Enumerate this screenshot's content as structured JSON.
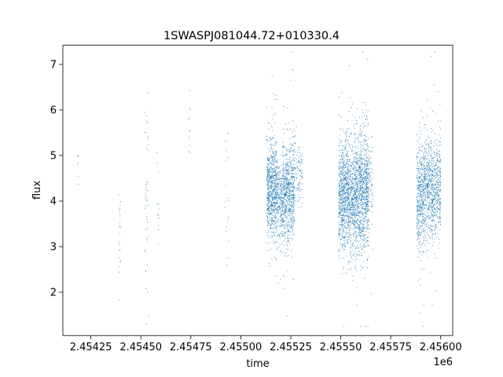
{
  "chart_data": {
    "type": "scatter",
    "title": "1SWASPJ081044.72+010330.4",
    "xlabel": "time",
    "ylabel": "flux",
    "x_offset_label": "1e6",
    "xlim": [
      2.45411,
      2.45606
    ],
    "ylim": [
      1.05,
      7.42
    ],
    "x_ticks": [
      {
        "value": 2.45425,
        "label": "2.45425"
      },
      {
        "value": 2.4545,
        "label": "2.45450"
      },
      {
        "value": 2.45475,
        "label": "2.45475"
      },
      {
        "value": 2.455,
        "label": "2.45500"
      },
      {
        "value": 2.45525,
        "label": "2.45525"
      },
      {
        "value": 2.4555,
        "label": "2.45550"
      },
      {
        "value": 2.45575,
        "label": "2.45575"
      },
      {
        "value": 2.456,
        "label": "2.45600"
      }
    ],
    "y_ticks": [
      {
        "value": 2,
        "label": "2"
      },
      {
        "value": 3,
        "label": "3"
      },
      {
        "value": 4,
        "label": "4"
      },
      {
        "value": 5,
        "label": "5"
      },
      {
        "value": 6,
        "label": "6"
      },
      {
        "value": 7,
        "label": "7"
      }
    ],
    "grid": false,
    "legend": "none",
    "marker_color": "#1f77b4",
    "series": [
      {
        "clusters": [
          {
            "x_range": [
              2.45418,
              2.45419
            ],
            "y_center": 4.85,
            "y_spread": 0.3,
            "n": 6
          },
          {
            "x_range": [
              2.45439,
              2.4544
            ],
            "y_center": 3.4,
            "y_spread": 0.6,
            "n": 22
          },
          {
            "x_range": [
              2.45452,
              2.45454
            ],
            "y_center": 4.2,
            "y_spread": 1.2,
            "n": 45
          },
          {
            "x_range": [
              2.45458,
              2.45459
            ],
            "y_center": 3.9,
            "y_spread": 0.6,
            "n": 12
          },
          {
            "x_range": [
              2.45474,
              2.45475
            ],
            "y_center": 5.35,
            "y_spread": 0.5,
            "n": 12
          },
          {
            "x_range": [
              2.45492,
              2.45494
            ],
            "y_center": 4.3,
            "y_spread": 0.7,
            "n": 18
          },
          {
            "x_range": [
              2.45513,
              2.45518
            ],
            "y_center": 4.25,
            "y_spread": 0.55,
            "n": 700
          },
          {
            "x_range": [
              2.45518,
              2.45521
            ],
            "y_center": 4.0,
            "y_spread": 0.45,
            "n": 250
          },
          {
            "x_range": [
              2.45521,
              2.45527
            ],
            "y_center": 4.2,
            "y_spread": 0.55,
            "n": 700
          },
          {
            "x_range": [
              2.45527,
              2.45531
            ],
            "y_center": 4.6,
            "y_spread": 0.4,
            "n": 90
          },
          {
            "x_range": [
              2.45549,
              2.45557
            ],
            "y_center": 4.1,
            "y_spread": 0.6,
            "n": 1100
          },
          {
            "x_range": [
              2.45557,
              2.45564
            ],
            "y_center": 4.2,
            "y_spread": 0.65,
            "n": 1000
          },
          {
            "x_range": [
              2.45564,
              2.45566
            ],
            "y_center": 4.4,
            "y_spread": 0.5,
            "n": 60
          },
          {
            "x_range": [
              2.45588,
              2.45592
            ],
            "y_center": 4.1,
            "y_spread": 0.6,
            "n": 450
          },
          {
            "x_range": [
              2.45592,
              2.456
            ],
            "y_center": 4.3,
            "y_spread": 0.55,
            "n": 750
          }
        ]
      }
    ]
  }
}
